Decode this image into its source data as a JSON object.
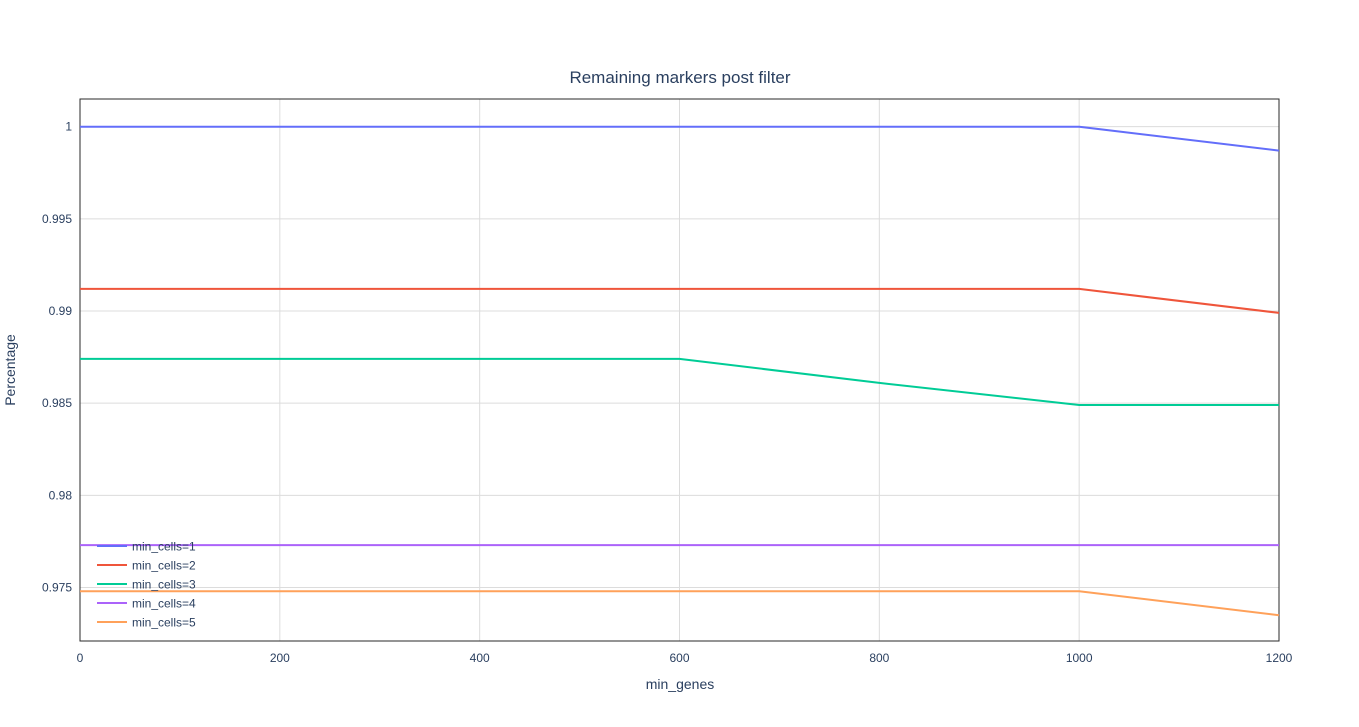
{
  "chart_data": {
    "type": "line",
    "title": "Remaining markers post filter",
    "xlabel": "min_genes",
    "ylabel": "Percentage",
    "x": [
      0,
      200,
      400,
      600,
      800,
      1000,
      1200
    ],
    "xlim": [
      0,
      1200
    ],
    "ylim": [
      0.9721,
      1.0015
    ],
    "xticks": [
      0,
      200,
      400,
      600,
      800,
      1000,
      1200
    ],
    "yticks": [
      0.975,
      0.98,
      0.985,
      0.99,
      0.995,
      1
    ],
    "ytick_labels": [
      "0.975",
      "0.98",
      "0.985",
      "0.99",
      "0.995",
      "1"
    ],
    "grid": true,
    "legend_position": "bottom-left",
    "series": [
      {
        "name": "min_cells=1",
        "color": "#636efa",
        "values": [
          1.0,
          1.0,
          1.0,
          1.0,
          1.0,
          1.0,
          0.9987
        ]
      },
      {
        "name": "min_cells=2",
        "color": "#ef553b",
        "values": [
          0.9912,
          0.9912,
          0.9912,
          0.9912,
          0.9912,
          0.9912,
          0.9899
        ]
      },
      {
        "name": "min_cells=3",
        "color": "#00cc96",
        "values": [
          0.9874,
          0.9874,
          0.9874,
          0.9874,
          0.9861,
          0.9849,
          0.9849
        ]
      },
      {
        "name": "min_cells=4",
        "color": "#ab63fa",
        "values": [
          0.9773,
          0.9773,
          0.9773,
          0.9773,
          0.9773,
          0.9773,
          0.9773
        ]
      },
      {
        "name": "min_cells=5",
        "color": "#ffa15a",
        "values": [
          0.9748,
          0.9748,
          0.9748,
          0.9748,
          0.9748,
          0.9748,
          0.9735
        ]
      }
    ]
  }
}
